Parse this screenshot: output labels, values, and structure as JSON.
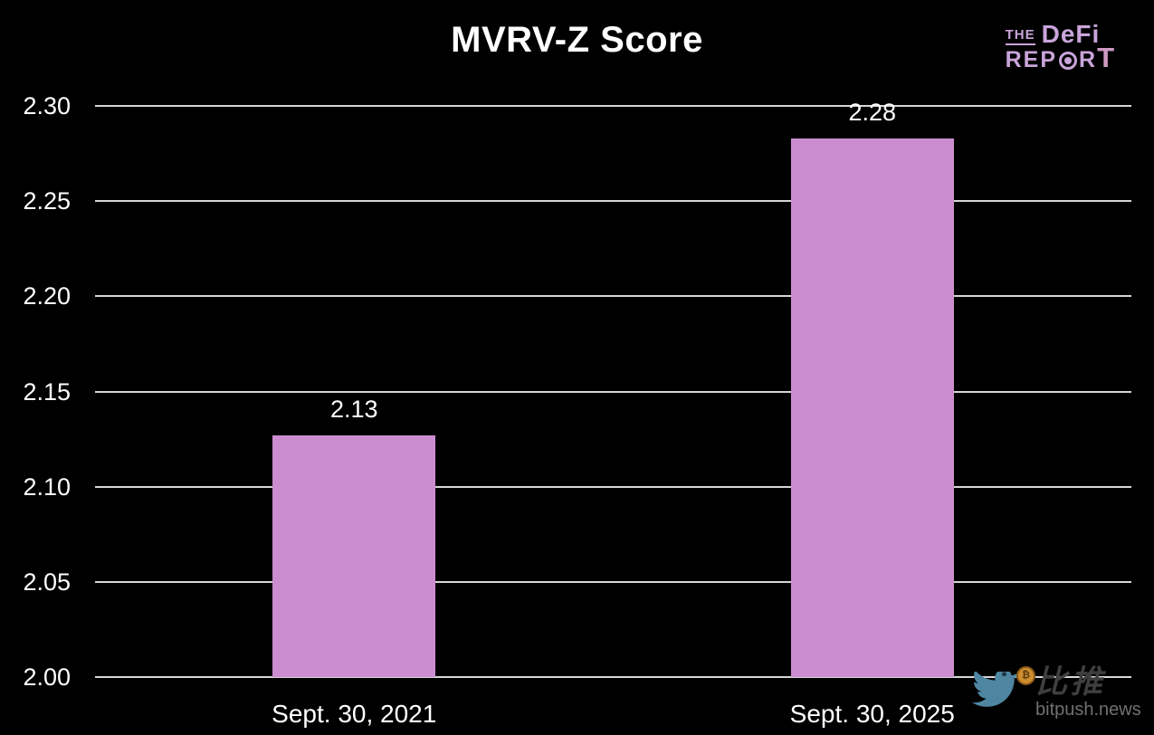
{
  "title": "MVRV-Z Score",
  "logo": {
    "the": "THE",
    "defi": "DeFi",
    "rep": "REP",
    "r2": "R",
    "t2": "T",
    "color": "#c9a4da"
  },
  "watermark": {
    "cn": "比推",
    "site": "bitpush.news"
  },
  "chart_data": {
    "type": "bar",
    "title": "MVRV-Z Score",
    "categories": [
      "Sept. 30, 2021",
      "Sept. 30, 2025"
    ],
    "values": [
      2.13,
      2.28
    ],
    "bar_tops_estimated": [
      2.127,
      2.283
    ],
    "value_labels": [
      "2.13",
      "2.28"
    ],
    "xlabel": "",
    "ylabel": "",
    "ylim": [
      2.0,
      2.3
    ],
    "ytick_step": 0.05,
    "yticks": [
      "2.30",
      "2.25",
      "2.20",
      "2.15",
      "2.10",
      "2.05",
      "2.00"
    ],
    "grid": true,
    "legend": false,
    "background": "#000000",
    "bar_color": "#cb8dd0",
    "gridline_color": "#d6d6d6",
    "text_color": "#ffffff"
  }
}
